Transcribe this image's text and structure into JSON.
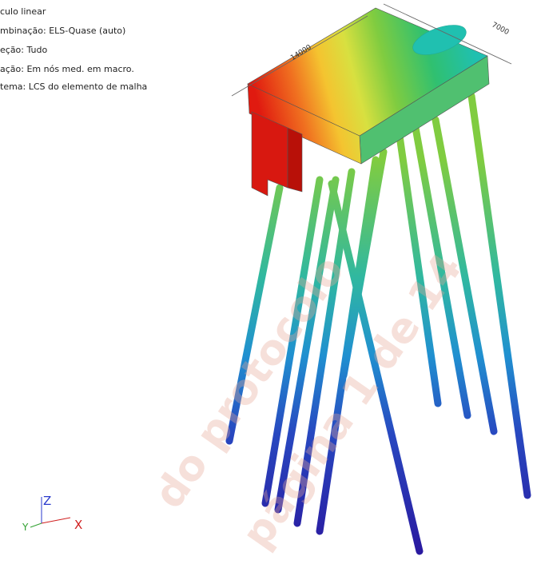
{
  "info_lines": [
    "culo linear",
    "mbinação: ELS-Quase (auto)",
    "eção: Tudo",
    "ação: Em nós med. em macro.",
    "tema: LCS do elemento de malha"
  ],
  "dimensions": [
    "14000",
    "7000"
  ],
  "axes": {
    "z": "Z",
    "x": "X",
    "y": "Y"
  },
  "watermark": [
    "do protocolo",
    "página 1 de 14"
  ]
}
